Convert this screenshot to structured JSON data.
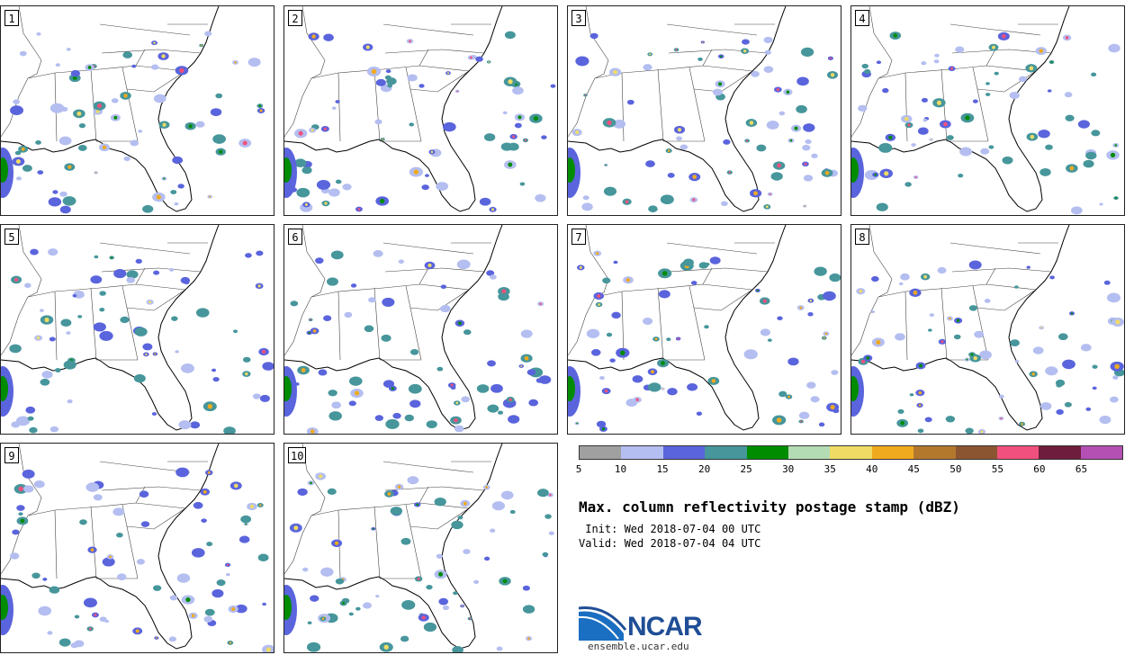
{
  "panels": [
    "1",
    "2",
    "3",
    "4",
    "5",
    "6",
    "7",
    "8",
    "9",
    "10"
  ],
  "colorbar": {
    "colors": [
      "#a0a0a0",
      "#b4bef0",
      "#5a64dc",
      "#46969b",
      "#008c00",
      "#b4dcb4",
      "#f0dc64",
      "#f0aa1e",
      "#b4782d",
      "#8c5532",
      "#f0507d",
      "#6e1e3c",
      "#b450b4"
    ],
    "ticks": [
      "5",
      "10",
      "15",
      "20",
      "25",
      "30",
      "35",
      "40",
      "45",
      "50",
      "55",
      "60",
      "65"
    ]
  },
  "title": "Max. column reflectivity postage stamp (dBZ)",
  "init": " Init: Wed 2018-07-04 00 UTC",
  "valid": "Valid: Wed 2018-07-04 04 UTC",
  "logo": {
    "text": "NCAR",
    "site": "ensemble.ucar.edu"
  }
}
